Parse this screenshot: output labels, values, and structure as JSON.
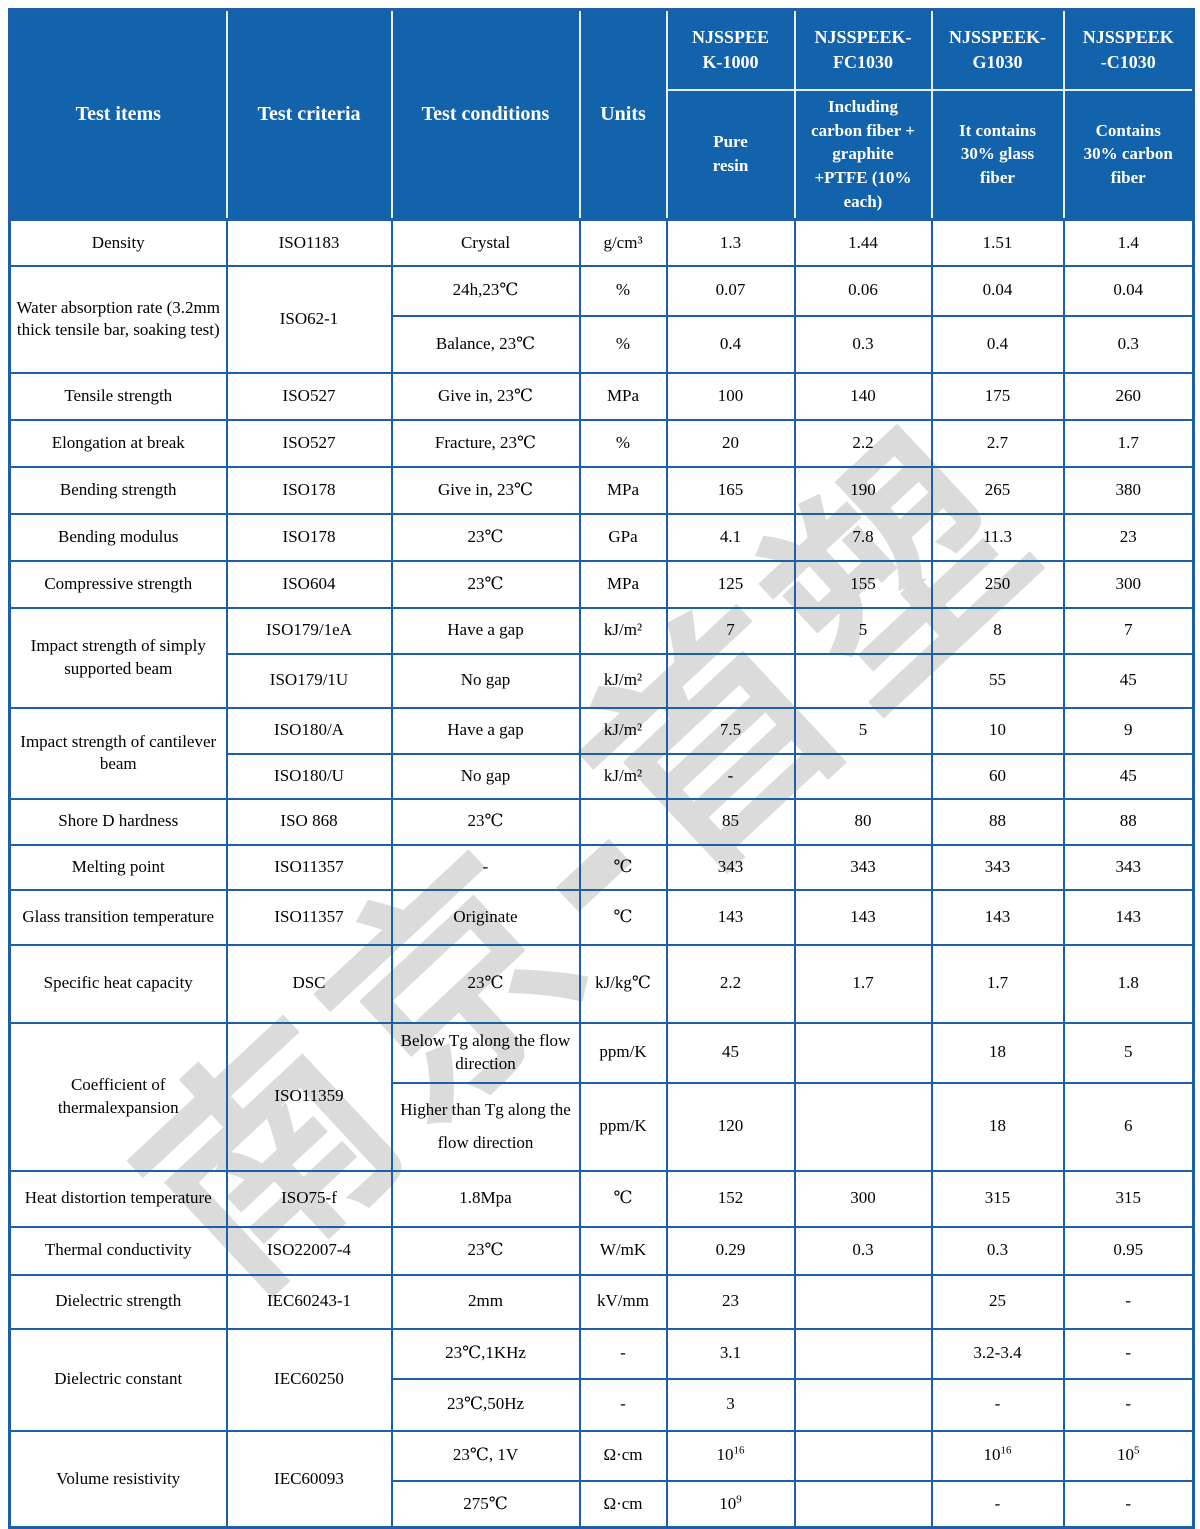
{
  "colors": {
    "header_bg": "#1362ac",
    "grid_blue": "#1e5fa9",
    "header_divider": "#e7edf5",
    "watermark_gray": "#dbdbdb"
  },
  "watermark": {
    "text": "南京-首塑"
  },
  "header": {
    "columns": [
      "Test items",
      "Test criteria",
      "Test conditions",
      "Units"
    ],
    "products": [
      {
        "name": "NJSSPEE\nK-1000",
        "desc": "Pure\nresin"
      },
      {
        "name": "NJSSPEEK-\nFC1030",
        "desc": "Including\ncarbon fiber +\ngraphite\n+PTFE (10%\neach)"
      },
      {
        "name": "NJSSPEEK-\nG1030",
        "desc": "It contains\n30% glass\nfiber"
      },
      {
        "name": "NJSSPEEK\n-C1030",
        "desc": "Contains\n30% carbon\nfiber"
      }
    ]
  },
  "rows": {
    "density": {
      "item": "Density",
      "criteria": "ISO1183",
      "cond": "Crystal",
      "unit": "g/cm³",
      "v": [
        "1.3",
        "1.44",
        "1.51",
        "1.4"
      ]
    },
    "water": {
      "item": "Water absorption rate (3.2mm thick tensile bar, soaking test)",
      "criteria": "ISO62-1"
    },
    "water_24h": {
      "cond": "24h,23℃",
      "unit": "%",
      "v": [
        "0.07",
        "0.06",
        "0.04",
        "0.04"
      ]
    },
    "water_balance": {
      "cond": "Balance, 23℃",
      "unit": "%",
      "v": [
        "0.4",
        "0.3",
        "0.4",
        "0.3"
      ]
    },
    "tensile": {
      "item": "Tensile strength",
      "criteria": "ISO527",
      "cond": "Give in, 23℃",
      "unit": "MPa",
      "v": [
        "100",
        "140",
        "175",
        "260"
      ]
    },
    "elongation": {
      "item": "Elongation at break",
      "criteria": "ISO527",
      "cond": "Fracture, 23℃",
      "unit": "%",
      "v": [
        "20",
        "2.2",
        "2.7",
        "1.7"
      ]
    },
    "bending_strength": {
      "item": "Bending strength",
      "criteria": "ISO178",
      "cond": "Give in, 23℃",
      "unit": "MPa",
      "v": [
        "165",
        "190",
        "265",
        "380"
      ]
    },
    "bending_modulus": {
      "item": "Bending modulus",
      "criteria": "ISO178",
      "cond": "23℃",
      "unit": "GPa",
      "v": [
        "4.1",
        "7.8",
        "11.3",
        "23"
      ]
    },
    "compressive": {
      "item": "Compressive strength",
      "criteria": "ISO604",
      "cond": "23℃",
      "unit": "MPa",
      "v": [
        "125",
        "155",
        "250",
        "300"
      ]
    },
    "impact_simple": {
      "item": "Impact strength of simply supported beam"
    },
    "impact_simple_gap": {
      "criteria": "ISO179/1eA",
      "cond": "Have a gap",
      "unit": "kJ/m²",
      "v": [
        "7",
        "5",
        "8",
        "7"
      ]
    },
    "impact_simple_nogap": {
      "criteria": "ISO179/1U",
      "cond": "No gap",
      "unit": "kJ/m²",
      "v": [
        "",
        "",
        "55",
        "45"
      ]
    },
    "impact_cant": {
      "item": "Impact strength of cantilever beam"
    },
    "impact_cant_gap": {
      "criteria": "ISO180/A",
      "cond": "Have a gap",
      "unit": "kJ/m²",
      "v": [
        "7.5",
        "5",
        "10",
        "9"
      ]
    },
    "impact_cant_nogap": {
      "criteria": "ISO180/U",
      "cond": "No gap",
      "unit": "kJ/m²",
      "v": [
        "-",
        "",
        "60",
        "45"
      ]
    },
    "shore": {
      "item": "Shore D hardness",
      "criteria": "ISO 868",
      "cond": "23℃",
      "unit": "",
      "v": [
        "85",
        "80",
        "88",
        "88"
      ]
    },
    "melting": {
      "item": "Melting point",
      "criteria": "ISO11357",
      "cond": "-",
      "unit": "℃",
      "v": [
        "343",
        "343",
        "343",
        "343"
      ]
    },
    "glass": {
      "item": "Glass transition temperature",
      "criteria": "ISO11357",
      "cond": "Originate",
      "unit": "℃",
      "v": [
        "143",
        "143",
        "143",
        "143"
      ]
    },
    "specific_heat": {
      "item": "Specific heat capacity",
      "criteria": "DSC",
      "cond": "23℃",
      "unit": "kJ/kg℃",
      "v": [
        "2.2",
        "1.7",
        "1.7",
        "1.8"
      ]
    },
    "cte": {
      "item": "Coefficient of thermalexpansion",
      "criteria": "ISO11359"
    },
    "cte_below": {
      "cond": "Below Tg along the flow direction",
      "unit": "ppm/K",
      "v": [
        "45",
        "",
        "18",
        "5"
      ]
    },
    "cte_above": {
      "cond": "Higher than Tg along the flow direction",
      "unit": "ppm/K",
      "v": [
        "120",
        "",
        "18",
        "6"
      ]
    },
    "heat_distortion": {
      "item": "Heat distortion temperature",
      "criteria": "ISO75-f",
      "cond": "1.8Mpa",
      "unit": "℃",
      "v": [
        "152",
        "300",
        "315",
        "315"
      ]
    },
    "thermal_conductivity": {
      "item": "Thermal conductivity",
      "criteria": "ISO22007-4",
      "cond": "23℃",
      "unit": "W/mK",
      "v": [
        "0.29",
        "0.3",
        "0.3",
        "0.95"
      ]
    },
    "dielectric_strength": {
      "item": "Dielectric strength",
      "criteria": "IEC60243-1",
      "cond": "2mm",
      "unit": "kV/mm",
      "v": [
        "23",
        "",
        "25",
        "-"
      ]
    },
    "dielectric_constant": {
      "item": "Dielectric constant",
      "criteria": "IEC60250"
    },
    "dc_1khz": {
      "cond": "23℃,1KHz",
      "unit": "-",
      "v": [
        "3.1",
        "",
        "3.2-3.4",
        "-"
      ]
    },
    "dc_50hz": {
      "cond": "23℃,50Hz",
      "unit": "-",
      "v": [
        "3",
        "",
        "-",
        "-"
      ]
    },
    "volume_resistivity": {
      "item": "Volume resistivity",
      "criteria": "IEC60093"
    },
    "vr_23c": {
      "cond": "23℃, 1V",
      "unit": "Ω·cm",
      "v": [
        "10^16",
        "",
        "10^16",
        "10^5"
      ]
    },
    "vr_275c": {
      "cond": "275℃",
      "unit": "Ω·cm",
      "v": [
        "10^9",
        "",
        "-",
        "-"
      ]
    }
  }
}
